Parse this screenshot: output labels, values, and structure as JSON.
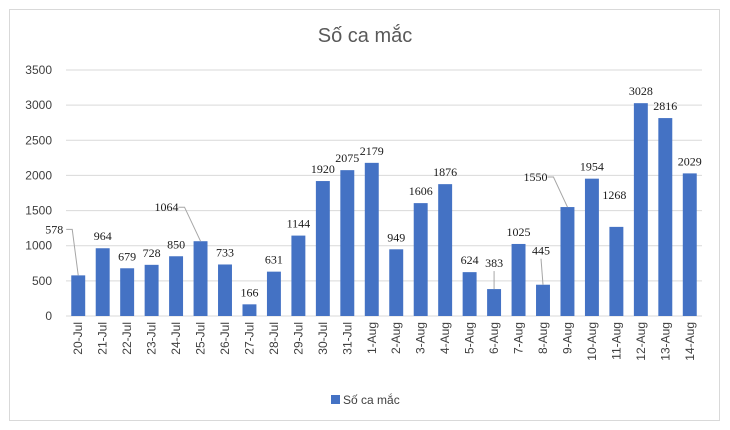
{
  "chart_data": {
    "type": "bar",
    "title": "Số ca mắc",
    "xlabel": "",
    "ylabel": "",
    "ylim": [
      0,
      3500
    ],
    "yticks": [
      0,
      500,
      1000,
      1500,
      2000,
      2500,
      3000,
      3500
    ],
    "grid": true,
    "legend_position": "bottom",
    "bar_color": "#4472c4",
    "categories": [
      "20-Jul",
      "21-Jul",
      "22-Jul",
      "23-Jul",
      "24-Jul",
      "25-Jul",
      "26-Jul",
      "27-Jul",
      "28-Jul",
      "29-Jul",
      "30-Jul",
      "31-Jul",
      "1-Aug",
      "2-Aug",
      "3-Aug",
      "4-Aug",
      "5-Aug",
      "6-Aug",
      "7-Aug",
      "8-Aug",
      "9-Aug",
      "10-Aug",
      "11-Aug",
      "12-Aug",
      "13-Aug",
      "14-Aug"
    ],
    "series": [
      {
        "name": "Số ca mắc",
        "values": [
          578,
          964,
          679,
          728,
          850,
          1064,
          733,
          166,
          631,
          1144,
          1920,
          2075,
          2179,
          949,
          1606,
          1876,
          624,
          383,
          1025,
          445,
          1550,
          1954,
          1268,
          3028,
          2816,
          2029
        ]
      }
    ]
  }
}
